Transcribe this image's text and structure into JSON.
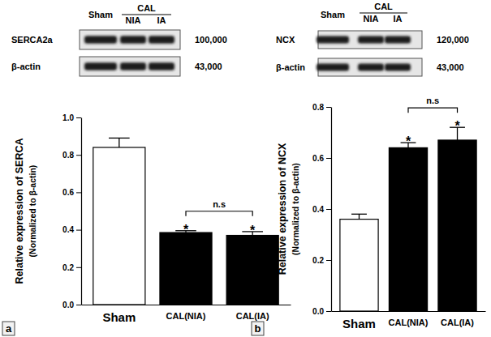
{
  "chart_data": [
    {
      "type": "bar",
      "panel": "a",
      "y_label": [
        "Relative expression of SERCA",
        "(Normalized to β-actin)"
      ],
      "categories": [
        "Sham",
        "CAL(NIA)",
        "CAL(IA)"
      ],
      "values": [
        0.84,
        0.385,
        0.37
      ],
      "errors": [
        0.05,
        0.01,
        0.02
      ],
      "colors": [
        "#ffffff",
        "#000000",
        "#000000"
      ],
      "ylim": [
        0,
        1.0
      ],
      "yticks": [
        {
          "value": 0,
          "label": "0.0"
        },
        0.2,
        0.4,
        0.6,
        0.8,
        {
          "value": 1.0,
          "label": "1.0"
        }
      ],
      "annotations": [
        {
          "text": "*",
          "at": 1
        },
        {
          "text": "*",
          "at": 2
        },
        {
          "text": "n.s",
          "from": 1,
          "to": 2
        }
      ],
      "blot": {
        "lanes": [
          "Sham",
          "NIA",
          "IA"
        ],
        "group": {
          "label": "CAL",
          "lanes": [
            1,
            2
          ]
        },
        "bands": [
          {
            "label": "SERCA2a",
            "mw": "100,000"
          },
          {
            "label": "β-actin",
            "mw": "43,000"
          }
        ]
      }
    },
    {
      "type": "bar",
      "panel": "b",
      "y_label": [
        "Relative expression of NCX",
        "(Normalized to β-actin)"
      ],
      "categories": [
        "Sham",
        "CAL(NIA)",
        "CAL(IA)"
      ],
      "values": [
        0.36,
        0.64,
        0.67
      ],
      "errors": [
        0.02,
        0.02,
        0.05
      ],
      "colors": [
        "#ffffff",
        "#000000",
        "#000000"
      ],
      "ylim": [
        0,
        0.8
      ],
      "yticks": [
        {
          "value": 0,
          "label": "0.0"
        },
        0.2,
        0.4,
        0.6,
        0.8
      ],
      "annotations": [
        {
          "text": "*",
          "at": 1
        },
        {
          "text": "*",
          "at": 2
        },
        {
          "text": "n.s",
          "from": 1,
          "to": 2
        }
      ],
      "blot": {
        "lanes": [
          "Sham",
          "NIA",
          "IA"
        ],
        "group": {
          "label": "CAL",
          "lanes": [
            1,
            2
          ]
        },
        "bands": [
          {
            "label": "NCX",
            "mw": "120,000"
          },
          {
            "label": "β-actin",
            "mw": "43,000"
          }
        ]
      }
    }
  ]
}
